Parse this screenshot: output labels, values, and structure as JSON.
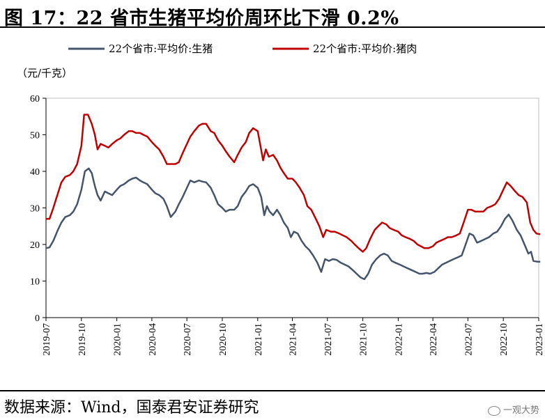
{
  "title": "图 17：22 省市生猪平均价周环比下滑 0.2%",
  "source": "数据来源：Wind，国泰君安证券研究",
  "watermark": "一观大势",
  "chart_data": {
    "type": "line",
    "unit": "（元/千克）",
    "ylim": [
      0,
      60
    ],
    "yticks": [
      0,
      10,
      20,
      30,
      40,
      50,
      60
    ],
    "xlim": [
      "2019-07",
      "2023-01"
    ],
    "xticks": [
      "2019-07",
      "2019-10",
      "2020-01",
      "2020-04",
      "2020-07",
      "2020-10",
      "2021-01",
      "2021-04",
      "2021-07",
      "2021-10",
      "2022-01",
      "2022-04",
      "2022-07",
      "2022-10",
      "2023-01"
    ],
    "legend_position": "top",
    "series": [
      {
        "name": "22个省市:平均价:生猪",
        "color": "#44546a",
        "points": [
          [
            "2019-07-01",
            19.0
          ],
          [
            "2019-07-10",
            19.2
          ],
          [
            "2019-07-20",
            21.0
          ],
          [
            "2019-08-01",
            24.0
          ],
          [
            "2019-08-10",
            26.0
          ],
          [
            "2019-08-20",
            27.5
          ],
          [
            "2019-09-01",
            28.0
          ],
          [
            "2019-09-10",
            29.0
          ],
          [
            "2019-09-20",
            31.0
          ],
          [
            "2019-10-01",
            35.0
          ],
          [
            "2019-10-10",
            40.0
          ],
          [
            "2019-10-20",
            40.8
          ],
          [
            "2019-10-28",
            39.5
          ],
          [
            "2019-11-05",
            36.0
          ],
          [
            "2019-11-12",
            33.5
          ],
          [
            "2019-11-20",
            32.0
          ],
          [
            "2019-12-01",
            34.5
          ],
          [
            "2019-12-10",
            34.0
          ],
          [
            "2019-12-20",
            33.5
          ],
          [
            "2020-01-01",
            35.0
          ],
          [
            "2020-01-10",
            36.0
          ],
          [
            "2020-01-20",
            36.5
          ],
          [
            "2020-02-01",
            37.5
          ],
          [
            "2020-02-10",
            38.0
          ],
          [
            "2020-02-20",
            38.3
          ],
          [
            "2020-03-01",
            37.5
          ],
          [
            "2020-03-10",
            37.0
          ],
          [
            "2020-03-20",
            36.5
          ],
          [
            "2020-04-01",
            35.0
          ],
          [
            "2020-04-10",
            34.0
          ],
          [
            "2020-04-20",
            33.5
          ],
          [
            "2020-05-01",
            32.5
          ],
          [
            "2020-05-10",
            30.5
          ],
          [
            "2020-05-20",
            27.5
          ],
          [
            "2020-06-01",
            29.0
          ],
          [
            "2020-06-10",
            31.0
          ],
          [
            "2020-06-20",
            33.0
          ],
          [
            "2020-07-01",
            35.5
          ],
          [
            "2020-07-10",
            37.5
          ],
          [
            "2020-07-20",
            37.0
          ],
          [
            "2020-08-01",
            37.5
          ],
          [
            "2020-08-10",
            37.2
          ],
          [
            "2020-08-20",
            37.0
          ],
          [
            "2020-09-01",
            35.5
          ],
          [
            "2020-09-10",
            33.5
          ],
          [
            "2020-09-20",
            31.0
          ],
          [
            "2020-10-01",
            30.0
          ],
          [
            "2020-10-10",
            29.0
          ],
          [
            "2020-10-20",
            29.5
          ],
          [
            "2020-11-01",
            29.5
          ],
          [
            "2020-11-10",
            30.5
          ],
          [
            "2020-11-20",
            33.0
          ],
          [
            "2020-12-01",
            34.5
          ],
          [
            "2020-12-10",
            36.0
          ],
          [
            "2020-12-20",
            36.5
          ],
          [
            "2021-01-01",
            35.5
          ],
          [
            "2021-01-10",
            33.0
          ],
          [
            "2021-01-18",
            28.0
          ],
          [
            "2021-01-25",
            30.5
          ],
          [
            "2021-02-01",
            29.0
          ],
          [
            "2021-02-10",
            28.0
          ],
          [
            "2021-02-20",
            29.5
          ],
          [
            "2021-03-01",
            28.0
          ],
          [
            "2021-03-10",
            26.0
          ],
          [
            "2021-03-20",
            24.5
          ],
          [
            "2021-03-28",
            22.0
          ],
          [
            "2021-04-05",
            23.5
          ],
          [
            "2021-04-15",
            23.0
          ],
          [
            "2021-04-25",
            21.0
          ],
          [
            "2021-05-05",
            19.5
          ],
          [
            "2021-05-15",
            18.5
          ],
          [
            "2021-05-25",
            17.0
          ],
          [
            "2021-06-05",
            15.0
          ],
          [
            "2021-06-15",
            12.5
          ],
          [
            "2021-06-25",
            16.0
          ],
          [
            "2021-07-05",
            15.5
          ],
          [
            "2021-07-15",
            16.0
          ],
          [
            "2021-07-25",
            15.8
          ],
          [
            "2021-08-05",
            15.0
          ],
          [
            "2021-08-15",
            14.5
          ],
          [
            "2021-08-25",
            14.0
          ],
          [
            "2021-09-05",
            13.0
          ],
          [
            "2021-09-15",
            12.0
          ],
          [
            "2021-09-25",
            11.0
          ],
          [
            "2021-10-05",
            10.5
          ],
          [
            "2021-10-15",
            12.0
          ],
          [
            "2021-10-25",
            14.5
          ],
          [
            "2021-11-05",
            16.0
          ],
          [
            "2021-11-15",
            17.0
          ],
          [
            "2021-11-25",
            17.5
          ],
          [
            "2021-12-05",
            17.0
          ],
          [
            "2021-12-15",
            15.5
          ],
          [
            "2021-12-25",
            15.0
          ],
          [
            "2022-01-05",
            14.5
          ],
          [
            "2022-01-15",
            14.0
          ],
          [
            "2022-01-25",
            13.5
          ],
          [
            "2022-02-05",
            13.0
          ],
          [
            "2022-02-15",
            12.5
          ],
          [
            "2022-02-25",
            12.0
          ],
          [
            "2022-03-05",
            12.0
          ],
          [
            "2022-03-15",
            12.2
          ],
          [
            "2022-03-25",
            12.0
          ],
          [
            "2022-04-05",
            12.5
          ],
          [
            "2022-04-15",
            13.5
          ],
          [
            "2022-04-25",
            14.5
          ],
          [
            "2022-05-05",
            15.0
          ],
          [
            "2022-05-15",
            15.5
          ],
          [
            "2022-05-25",
            16.0
          ],
          [
            "2022-06-05",
            16.5
          ],
          [
            "2022-06-15",
            17.0
          ],
          [
            "2022-06-25",
            20.0
          ],
          [
            "2022-07-05",
            23.0
          ],
          [
            "2022-07-15",
            22.5
          ],
          [
            "2022-07-25",
            20.5
          ],
          [
            "2022-08-05",
            21.0
          ],
          [
            "2022-08-15",
            21.5
          ],
          [
            "2022-08-25",
            22.0
          ],
          [
            "2022-09-05",
            23.0
          ],
          [
            "2022-09-15",
            23.5
          ],
          [
            "2022-09-25",
            25.0
          ],
          [
            "2022-10-05",
            27.0
          ],
          [
            "2022-10-15",
            28.2
          ],
          [
            "2022-10-25",
            26.5
          ],
          [
            "2022-11-05",
            24.0
          ],
          [
            "2022-11-15",
            22.5
          ],
          [
            "2022-11-25",
            20.0
          ],
          [
            "2022-12-05",
            17.5
          ],
          [
            "2022-12-12",
            18.0
          ],
          [
            "2022-12-18",
            15.5
          ],
          [
            "2022-12-28",
            15.3
          ],
          [
            "2023-01-05",
            15.3
          ]
        ]
      },
      {
        "name": "22个省市:平均价:猪肉",
        "color": "#c00000",
        "points": [
          [
            "2019-07-01",
            27.0
          ],
          [
            "2019-07-10",
            27.0
          ],
          [
            "2019-07-20",
            30.0
          ],
          [
            "2019-08-01",
            34.0
          ],
          [
            "2019-08-10",
            37.0
          ],
          [
            "2019-08-20",
            38.5
          ],
          [
            "2019-09-01",
            39.0
          ],
          [
            "2019-09-10",
            40.0
          ],
          [
            "2019-09-20",
            42.0
          ],
          [
            "2019-10-01",
            47.0
          ],
          [
            "2019-10-08",
            55.5
          ],
          [
            "2019-10-18",
            55.5
          ],
          [
            "2019-10-28",
            53.0
          ],
          [
            "2019-11-05",
            50.0
          ],
          [
            "2019-11-12",
            46.0
          ],
          [
            "2019-11-20",
            47.5
          ],
          [
            "2019-12-01",
            47.0
          ],
          [
            "2019-12-10",
            46.5
          ],
          [
            "2019-12-20",
            47.5
          ],
          [
            "2020-01-01",
            48.5
          ],
          [
            "2020-01-10",
            49.0
          ],
          [
            "2020-01-20",
            50.0
          ],
          [
            "2020-02-01",
            51.0
          ],
          [
            "2020-02-10",
            51.0
          ],
          [
            "2020-02-20",
            50.5
          ],
          [
            "2020-03-01",
            50.5
          ],
          [
            "2020-03-10",
            50.0
          ],
          [
            "2020-03-20",
            49.5
          ],
          [
            "2020-04-01",
            48.0
          ],
          [
            "2020-04-10",
            47.0
          ],
          [
            "2020-04-20",
            46.0
          ],
          [
            "2020-05-01",
            44.0
          ],
          [
            "2020-05-10",
            42.0
          ],
          [
            "2020-05-20",
            42.0
          ],
          [
            "2020-06-01",
            42.0
          ],
          [
            "2020-06-10",
            42.5
          ],
          [
            "2020-06-20",
            45.0
          ],
          [
            "2020-07-01",
            47.5
          ],
          [
            "2020-07-10",
            49.5
          ],
          [
            "2020-07-20",
            51.0
          ],
          [
            "2020-08-01",
            52.5
          ],
          [
            "2020-08-10",
            53.0
          ],
          [
            "2020-08-20",
            53.0
          ],
          [
            "2020-09-01",
            51.0
          ],
          [
            "2020-09-10",
            50.5
          ],
          [
            "2020-09-20",
            48.5
          ],
          [
            "2020-10-01",
            47.0
          ],
          [
            "2020-10-10",
            45.5
          ],
          [
            "2020-10-20",
            44.0
          ],
          [
            "2020-11-01",
            42.5
          ],
          [
            "2020-11-10",
            44.5
          ],
          [
            "2020-11-20",
            46.5
          ],
          [
            "2020-12-01",
            48.0
          ],
          [
            "2020-12-10",
            50.5
          ],
          [
            "2020-12-20",
            51.8
          ],
          [
            "2021-01-01",
            51.0
          ],
          [
            "2021-01-08",
            47.0
          ],
          [
            "2021-01-15",
            43.0
          ],
          [
            "2021-01-22",
            46.0
          ],
          [
            "2021-01-30",
            44.0
          ],
          [
            "2021-02-10",
            44.5
          ],
          [
            "2021-02-20",
            43.0
          ],
          [
            "2021-03-01",
            41.0
          ],
          [
            "2021-03-10",
            39.5
          ],
          [
            "2021-03-20",
            38.0
          ],
          [
            "2021-04-01",
            38.0
          ],
          [
            "2021-04-10",
            37.0
          ],
          [
            "2021-04-20",
            35.5
          ],
          [
            "2021-05-01",
            33.5
          ],
          [
            "2021-05-10",
            30.5
          ],
          [
            "2021-05-20",
            29.5
          ],
          [
            "2021-06-01",
            27.0
          ],
          [
            "2021-06-10",
            25.0
          ],
          [
            "2021-06-20",
            22.0
          ],
          [
            "2021-06-28",
            24.0
          ],
          [
            "2021-07-10",
            23.5
          ],
          [
            "2021-07-20",
            23.5
          ],
          [
            "2021-08-01",
            23.0
          ],
          [
            "2021-08-10",
            22.5
          ],
          [
            "2021-08-20",
            22.0
          ],
          [
            "2021-09-01",
            21.0
          ],
          [
            "2021-09-10",
            20.0
          ],
          [
            "2021-09-20",
            19.0
          ],
          [
            "2021-10-01",
            18.0
          ],
          [
            "2021-10-10",
            19.0
          ],
          [
            "2021-10-20",
            21.5
          ],
          [
            "2021-11-01",
            24.0
          ],
          [
            "2021-11-10",
            25.0
          ],
          [
            "2021-11-20",
            26.0
          ],
          [
            "2021-12-01",
            25.5
          ],
          [
            "2021-12-10",
            24.5
          ],
          [
            "2021-12-20",
            24.0
          ],
          [
            "2022-01-01",
            23.5
          ],
          [
            "2022-01-10",
            22.5
          ],
          [
            "2022-01-20",
            22.0
          ],
          [
            "2022-02-01",
            21.5
          ],
          [
            "2022-02-10",
            21.0
          ],
          [
            "2022-02-20",
            20.0
          ],
          [
            "2022-03-01",
            19.5
          ],
          [
            "2022-03-10",
            19.0
          ],
          [
            "2022-03-20",
            19.0
          ],
          [
            "2022-04-01",
            19.5
          ],
          [
            "2022-04-10",
            20.5
          ],
          [
            "2022-04-20",
            21.0
          ],
          [
            "2022-05-01",
            21.5
          ],
          [
            "2022-05-10",
            22.0
          ],
          [
            "2022-05-20",
            22.0
          ],
          [
            "2022-06-01",
            22.5
          ],
          [
            "2022-06-10",
            23.0
          ],
          [
            "2022-06-20",
            26.0
          ],
          [
            "2022-07-01",
            29.5
          ],
          [
            "2022-07-10",
            29.5
          ],
          [
            "2022-07-20",
            29.0
          ],
          [
            "2022-08-01",
            29.0
          ],
          [
            "2022-08-10",
            29.0
          ],
          [
            "2022-08-20",
            30.0
          ],
          [
            "2022-09-01",
            30.5
          ],
          [
            "2022-09-10",
            31.0
          ],
          [
            "2022-09-20",
            32.5
          ],
          [
            "2022-10-01",
            35.0
          ],
          [
            "2022-10-10",
            37.0
          ],
          [
            "2022-10-20",
            36.0
          ],
          [
            "2022-11-01",
            34.5
          ],
          [
            "2022-11-10",
            33.5
          ],
          [
            "2022-11-20",
            33.0
          ],
          [
            "2022-12-01",
            31.5
          ],
          [
            "2022-12-10",
            26.0
          ],
          [
            "2022-12-18",
            24.0
          ],
          [
            "2022-12-26",
            23.0
          ],
          [
            "2023-01-05",
            22.8
          ]
        ]
      }
    ]
  }
}
